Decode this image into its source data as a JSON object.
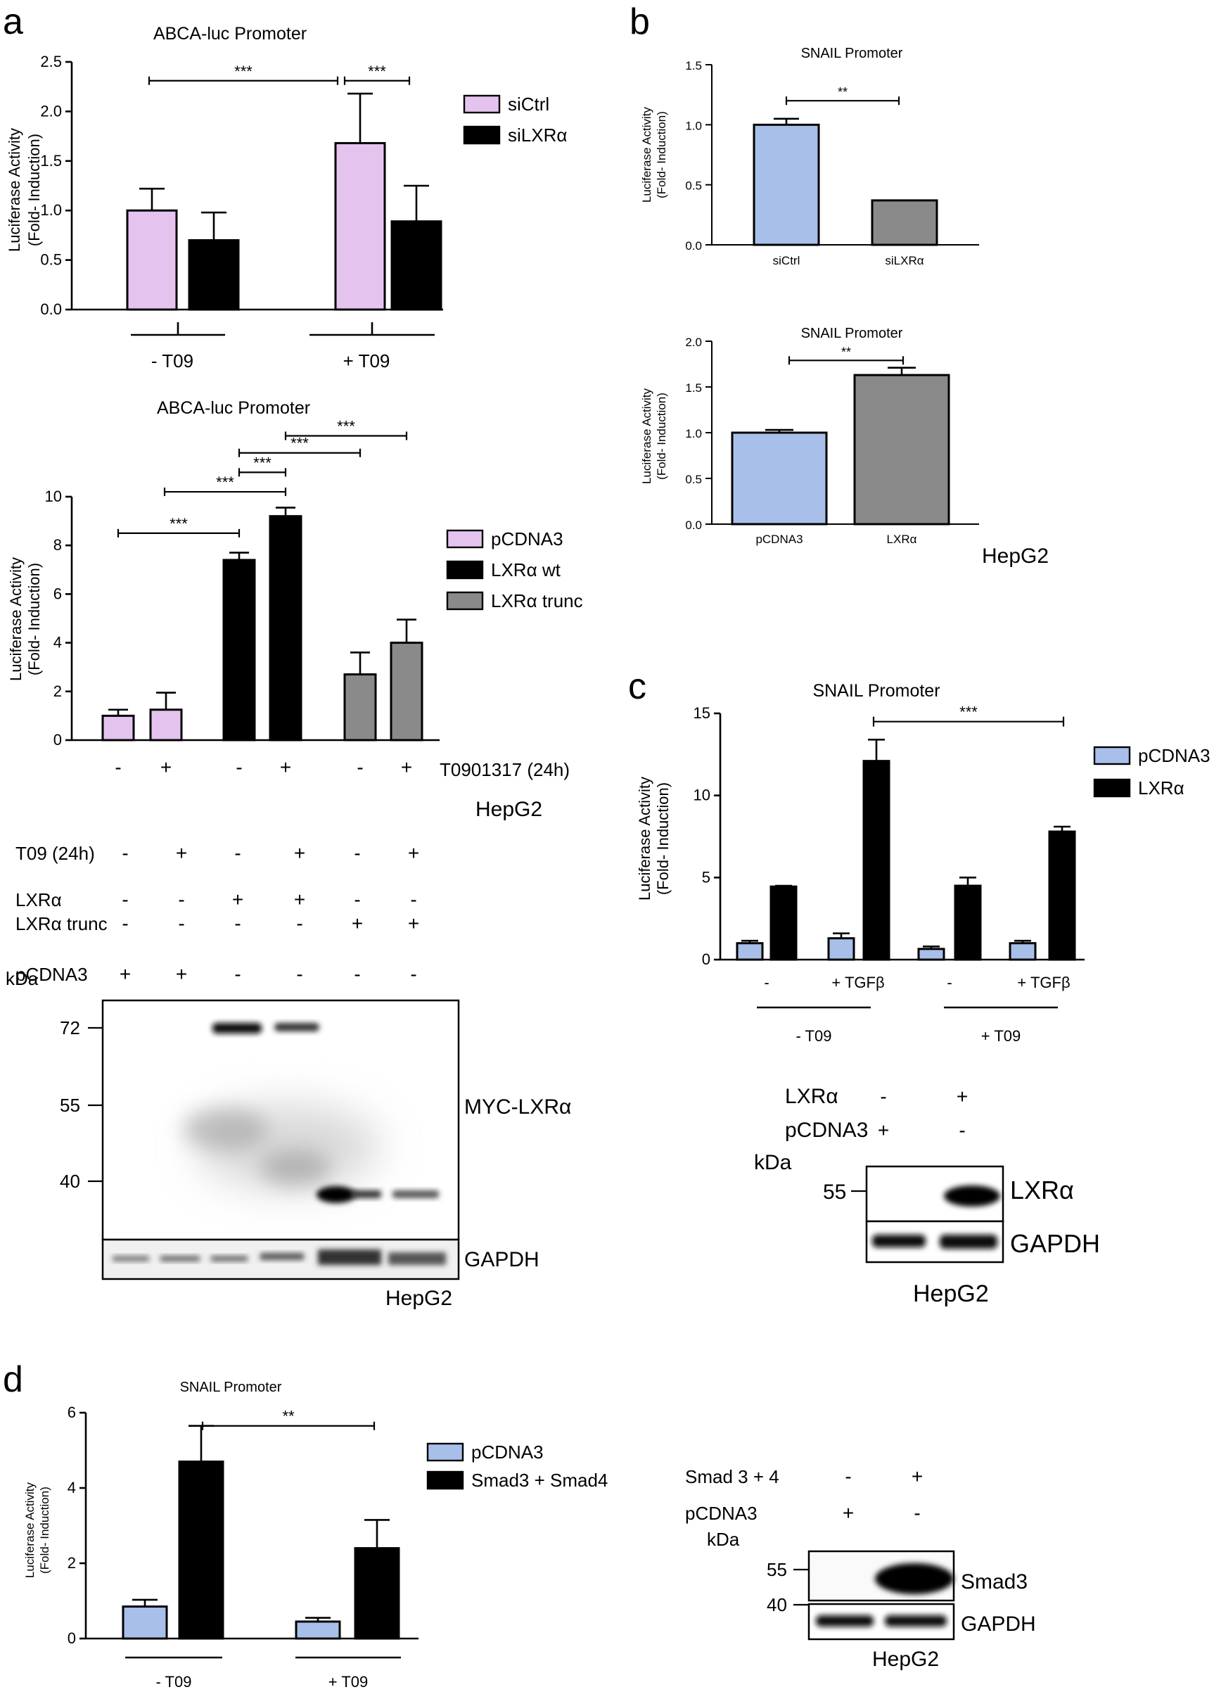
{
  "colors": {
    "pink": "#e4c4ee",
    "black": "#000000",
    "gray": "#8a8a8a",
    "blue": "#a8bfe9",
    "dgray": "#6e6e6e"
  },
  "panel_labels": {
    "a": "a",
    "b": "b",
    "c": "c",
    "d": "d"
  },
  "chart_data": [
    {
      "id": "a1",
      "type": "bar",
      "title": "ABCA-luc Promoter",
      "ylabel": "Luciferase Activity\n(Fold- Induction)",
      "ylim": [
        0,
        2.5
      ],
      "yticks": [
        "0.0",
        "0.5",
        "1.0",
        "1.5",
        "2.0",
        "2.5"
      ],
      "groups": [
        "- T09",
        "+ T09"
      ],
      "series": [
        {
          "name": "siCtrl",
          "values": [
            1.0,
            1.68
          ],
          "errors": [
            0.22,
            0.5
          ],
          "color": "pink"
        },
        {
          "name": "siLXRα",
          "values": [
            0.7,
            0.89
          ],
          "errors": [
            0.28,
            0.36
          ],
          "color": "black"
        }
      ],
      "significance": [
        "***",
        "***"
      ]
    },
    {
      "id": "a2",
      "type": "bar",
      "title": "ABCA-luc Promoter",
      "ylabel": "Luciferase Activity\n(Fold- Induction)",
      "ylim": [
        0,
        10
      ],
      "yticks": [
        "0",
        "2",
        "4",
        "6",
        "8",
        "10"
      ],
      "series": [
        {
          "name": "pCDNA3",
          "values": [
            1.0,
            1.25
          ],
          "errors": [
            0.25,
            0.7
          ],
          "color": "pink"
        },
        {
          "name": "LXRα wt",
          "values": [
            7.4,
            9.2
          ],
          "errors": [
            0.3,
            0.35
          ],
          "color": "black"
        },
        {
          "name": "LXRα trunc",
          "values": [
            2.7,
            4.0
          ],
          "errors": [
            0.9,
            0.95
          ],
          "color": "gray"
        }
      ],
      "xtick_signs": [
        "-",
        "+",
        "-",
        "+",
        "-",
        "+"
      ],
      "xlabel": "T0901317 (24h)",
      "significance": [
        "***",
        "***",
        "***",
        "***",
        "***"
      ],
      "cell_line": "HepG2"
    },
    {
      "id": "b1",
      "type": "bar",
      "title": "SNAIL Promoter",
      "ylabel": "Luciferase Activity\n(Fold- Induction)",
      "ylim": [
        0,
        1.5
      ],
      "yticks": [
        "0.0",
        "0.5",
        "1.0",
        "1.5"
      ],
      "categories": [
        "siCtrl",
        "siLXRα"
      ],
      "values": [
        1.0,
        0.37
      ],
      "errors": [
        0.05,
        0
      ],
      "colors": [
        "blue",
        "gray"
      ],
      "significance": "**"
    },
    {
      "id": "b2",
      "type": "bar",
      "title": "SNAIL Promoter",
      "ylabel": "Luciferase Activity\n(Fold- Induction)",
      "ylim": [
        0,
        2.0
      ],
      "yticks": [
        "0.0",
        "0.5",
        "1.0",
        "1.5",
        "2.0"
      ],
      "categories": [
        "pCDNA3",
        "LXRα"
      ],
      "values": [
        1.0,
        1.63
      ],
      "errors": [
        0.03,
        0.08
      ],
      "colors": [
        "blue",
        "gray"
      ],
      "significance": "**",
      "cell_line": "HepG2"
    },
    {
      "id": "c",
      "type": "bar",
      "title": "SNAIL Promoter",
      "ylabel": "Luciferase Activity\n(Fold- Induction)",
      "ylim": [
        0,
        15
      ],
      "yticks": [
        "0",
        "5",
        "10",
        "15"
      ],
      "categories": [
        "-",
        "+ TGFβ",
        "-",
        "+ TGFβ"
      ],
      "groups": [
        "- T09",
        "+ T09"
      ],
      "series": [
        {
          "name": "pCDNA3",
          "values": [
            1.0,
            1.3,
            0.65,
            1.0
          ],
          "errors": [
            0.15,
            0.3,
            0.15,
            0.15
          ],
          "color": "blue"
        },
        {
          "name": "LXRα",
          "values": [
            4.45,
            12.1,
            4.5,
            7.8
          ],
          "errors": [
            0.05,
            1.3,
            0.5,
            0.3
          ],
          "color": "black"
        }
      ],
      "significance": "***"
    },
    {
      "id": "d",
      "type": "bar",
      "title": "SNAIL Promoter",
      "ylabel": "Luciferase Activity\n(Fold- Induction)",
      "ylim": [
        0,
        6
      ],
      "yticks": [
        "0",
        "2",
        "4",
        "6"
      ],
      "groups": [
        "- T09",
        "+ T09"
      ],
      "series": [
        {
          "name": "pCDNA3",
          "values": [
            0.85,
            0.45
          ],
          "errors": [
            0.18,
            0.1
          ],
          "color": "blue"
        },
        {
          "name": "Smad3 + Smad4",
          "values": [
            4.7,
            2.4
          ],
          "errors": [
            0.95,
            0.75
          ],
          "color": "black"
        }
      ],
      "significance": "**"
    }
  ],
  "blot_a": {
    "rows": [
      {
        "label": "T09 (24h)",
        "signs": [
          "-",
          "+",
          "-",
          "+",
          "-",
          "+"
        ]
      },
      {
        "label": "LXRα",
        "signs": [
          "-",
          "-",
          "+",
          "+",
          "-",
          "-"
        ]
      },
      {
        "label": "LXRα trunc",
        "signs": [
          "-",
          "-",
          "-",
          "-",
          "+",
          "+"
        ]
      },
      {
        "label": "pCDNA3",
        "signs": [
          "+",
          "+",
          "-",
          "-",
          "-",
          "-"
        ]
      }
    ],
    "kda": "kDa",
    "markers": [
      "72",
      "55",
      "40"
    ],
    "bands": [
      "MYC-LXRα",
      "GAPDH"
    ],
    "cell_line": "HepG2"
  },
  "blot_c": {
    "rows": [
      {
        "label": "LXRα",
        "signs": [
          "-",
          "+"
        ]
      },
      {
        "label": "pCDNA3",
        "signs": [
          "+",
          "-"
        ]
      }
    ],
    "kda": "kDa",
    "markers": [
      "55"
    ],
    "bands": [
      "LXRα",
      "GAPDH"
    ],
    "cell_line": "HepG2"
  },
  "blot_d": {
    "rows": [
      {
        "label": "Smad 3 + 4",
        "signs": [
          "-",
          "+"
        ]
      },
      {
        "label": "pCDNA3",
        "signs": [
          "+",
          "-"
        ]
      }
    ],
    "kda": "kDa",
    "markers": [
      "55",
      "40"
    ],
    "bands": [
      "Smad3",
      "GAPDH"
    ],
    "cell_line": "HepG2"
  }
}
